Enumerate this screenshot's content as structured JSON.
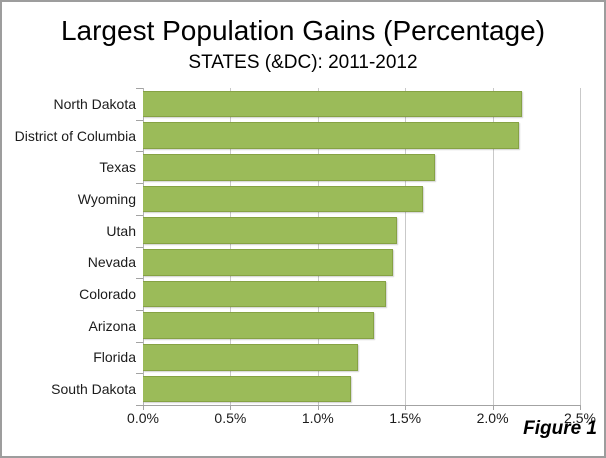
{
  "chart": {
    "title": "Largest Population Gains (Percentage)",
    "subtitle": "STATES (&DC): 2011-2012",
    "figure_label": "Figure 1"
  },
  "chart_data": {
    "type": "bar",
    "orientation": "horizontal",
    "title": "Largest Population Gains (Percentage)",
    "subtitle": "STATES (&DC): 2011-2012",
    "categories": [
      "North Dakota",
      "District of Columbia",
      "Texas",
      "Wyoming",
      "Utah",
      "Nevada",
      "Colorado",
      "Arizona",
      "Florida",
      "South Dakota"
    ],
    "values": [
      2.17,
      2.15,
      1.67,
      1.6,
      1.45,
      1.43,
      1.39,
      1.32,
      1.23,
      1.19
    ],
    "unit": "%",
    "xlabel": "",
    "ylabel": "",
    "xlim": [
      0,
      2.5
    ],
    "x_ticks": [
      0.0,
      0.5,
      1.0,
      1.5,
      2.0,
      2.5
    ],
    "x_tick_labels": [
      "0.0%",
      "0.5%",
      "1.0%",
      "1.5%",
      "2.0%",
      "2.5%"
    ],
    "grid": true,
    "legend": false,
    "annotation": "Figure 1",
    "colors": {
      "bar": "#9bbb59",
      "gridline": "#c9c9c9",
      "axis": "#a3a3a3",
      "text": "#1b1b1b",
      "frame_border": "#9d9d9d",
      "background": "#ffffff"
    }
  }
}
